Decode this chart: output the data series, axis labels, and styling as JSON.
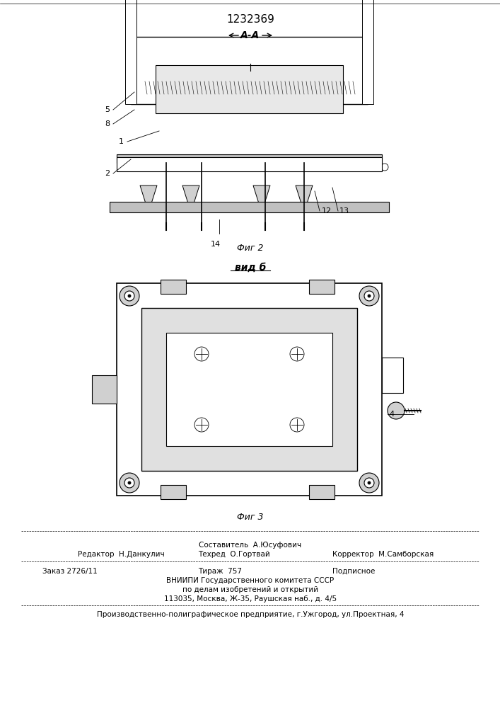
{
  "patent_number": "1232369",
  "fig2_label": "А-А",
  "fig2_caption": "Фиг 2",
  "fig3_label": "вид б",
  "fig3_caption": "Фиг 3",
  "editor_line": "Редактор  Н.Данкулич",
  "composer_line": "Составитель  А.Юсуфович",
  "techred_line": "Техред  О.Гортвай",
  "corrector_line": "Корректор  М.Самборская",
  "order_line": "Заказ 2726/11",
  "tirazh_line": "Тираж  757",
  "podpisnoe_line": "Подписное",
  "vniip_line": "ВНИИПИ Государственного комитета СССР",
  "izobr_line": "по делам изобретений и открытий",
  "address_line": "113035, Москва, Ж-35, Раушская наб., д. 4/5",
  "production_line": "Производственно-полиграфическое предприятие, г.Ужгород, ул.Проектная, 4",
  "bg_color": "#ffffff",
  "line_color": "#000000"
}
